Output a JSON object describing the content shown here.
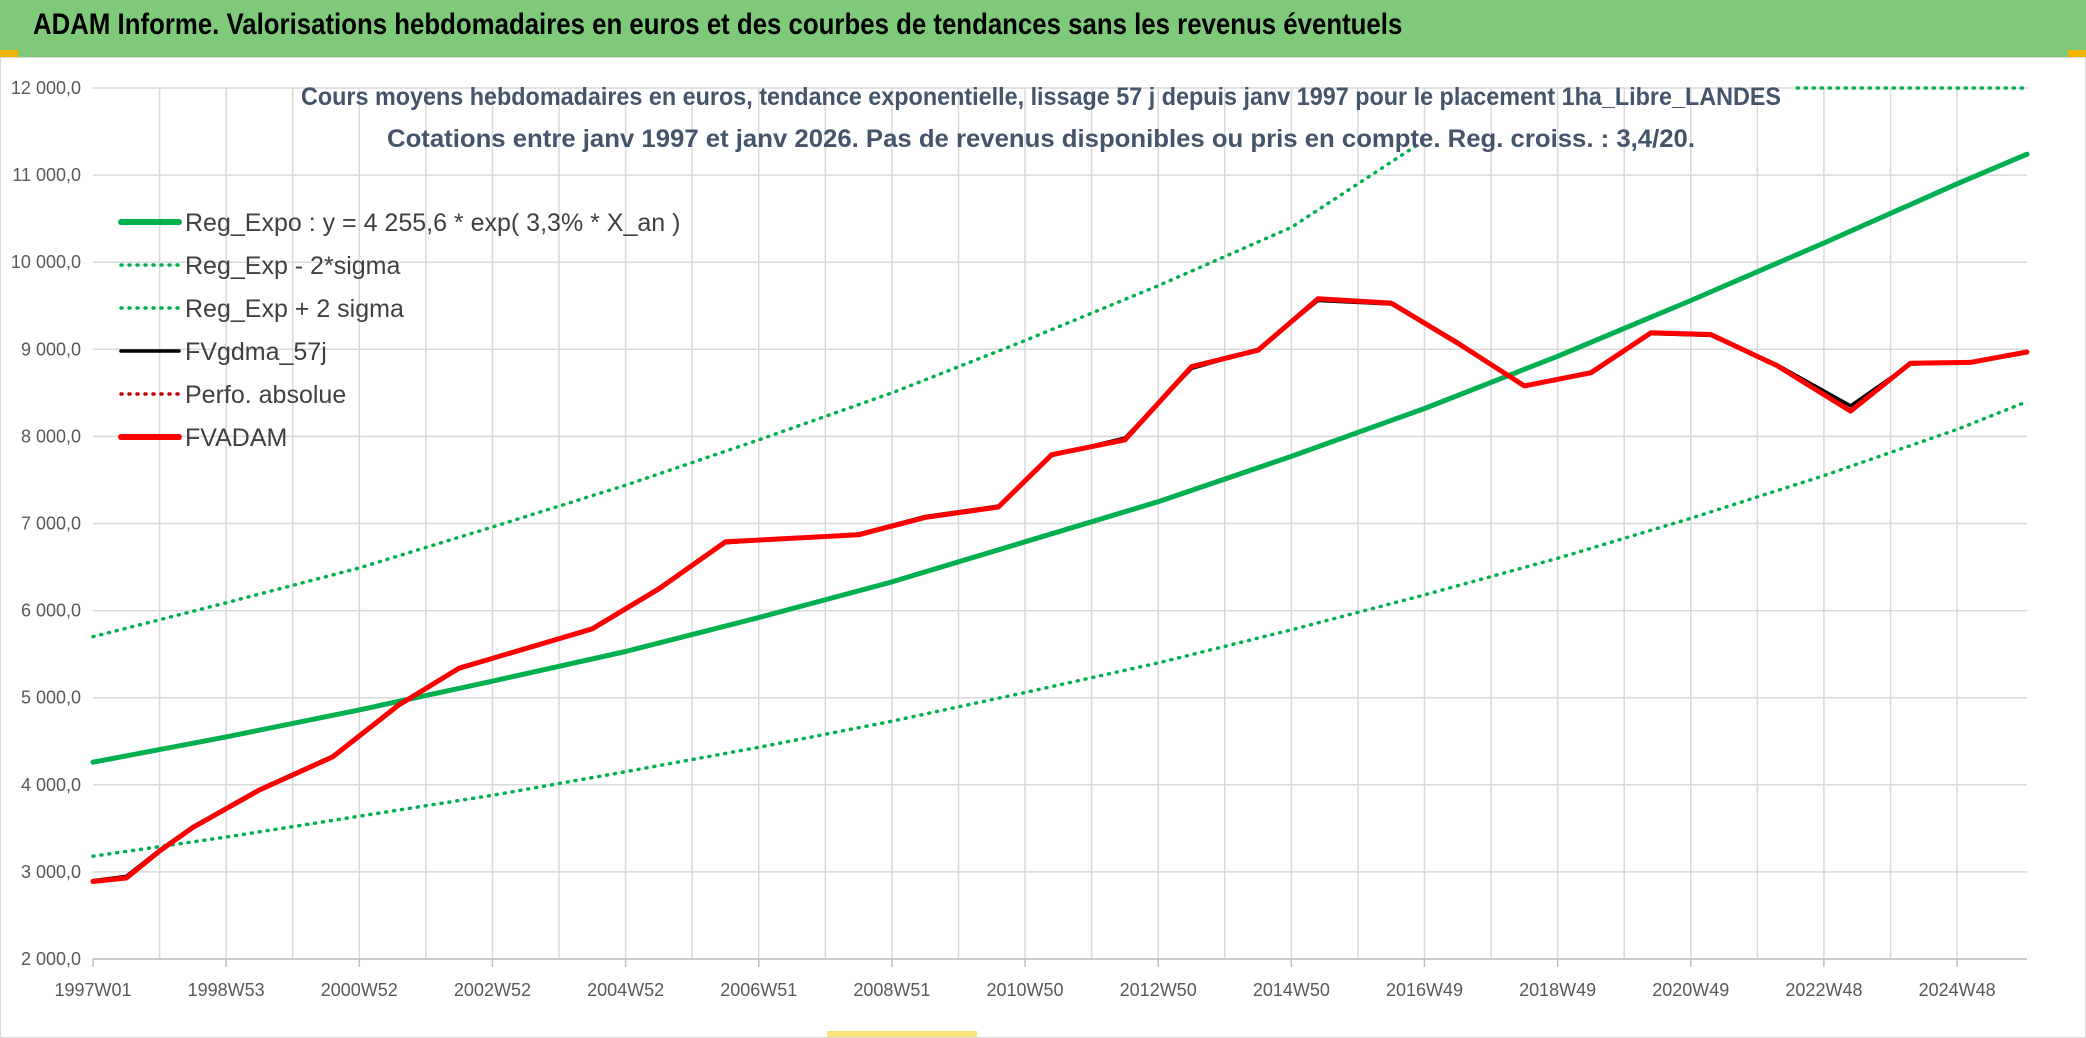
{
  "header": {
    "title": "ADAM Informe. Valorisations hebdomadaires en euros et des courbes de tendances sans les revenus éventuels"
  },
  "colors": {
    "header_bg": "#7fca7a",
    "trend_green": "#00b050",
    "band_green": "#00b050",
    "fvadam_red": "#ff0000",
    "fvgdma_black": "#000000",
    "perfo_red": "#c00000",
    "grid": "#d9d9d9"
  },
  "chart_data": {
    "type": "line",
    "title_line1": "Cours moyens hebdomadaires en euros, tendance exponentielle, lissage 57 j depuis janv 1997 pour le placement 1ha_Libre_LANDES",
    "title_line2": "Cotations entre janv 1997 et janv 2026. Pas de revenus disponibles ou pris en compte. Reg. croiss. : 3,4/20.",
    "ylim": [
      2000,
      12000
    ],
    "xlim_years": [
      1997.0,
      2026.05
    ],
    "y_ticks": [
      {
        "value": 2000,
        "label": "2 000,0"
      },
      {
        "value": 3000,
        "label": "3 000,0"
      },
      {
        "value": 4000,
        "label": "4 000,0"
      },
      {
        "value": 5000,
        "label": "5 000,0"
      },
      {
        "value": 6000,
        "label": "6 000,0"
      },
      {
        "value": 7000,
        "label": "7 000,0"
      },
      {
        "value": 8000,
        "label": "8 000,0"
      },
      {
        "value": 9000,
        "label": "9 000,0"
      },
      {
        "value": 10000,
        "label": "10 000,0"
      },
      {
        "value": 11000,
        "label": "11 000,0"
      },
      {
        "value": 12000,
        "label": "12 000,0"
      }
    ],
    "x_ticks": [
      {
        "year": 1997.0,
        "label": "1997W01"
      },
      {
        "year": 1999.0,
        "label": "1998W53"
      },
      {
        "year": 2001.0,
        "label": "2000W52"
      },
      {
        "year": 2003.0,
        "label": "2002W52"
      },
      {
        "year": 2005.0,
        "label": "2004W52"
      },
      {
        "year": 2007.0,
        "label": "2006W51"
      },
      {
        "year": 2009.0,
        "label": "2008W51"
      },
      {
        "year": 2011.0,
        "label": "2010W50"
      },
      {
        "year": 2013.0,
        "label": "2012W50"
      },
      {
        "year": 2015.0,
        "label": "2014W50"
      },
      {
        "year": 2017.0,
        "label": "2016W49"
      },
      {
        "year": 2019.0,
        "label": "2018W49"
      },
      {
        "year": 2021.0,
        "label": "2020W49"
      },
      {
        "year": 2023.0,
        "label": "2022W48"
      },
      {
        "year": 2025.0,
        "label": "2024W48"
      }
    ],
    "grid": true,
    "legend_position": "top-left",
    "series": [
      {
        "name": "Reg_Expo : y = 4 255,6 * exp( 3,3% *  X_an )",
        "style": "solid-thick",
        "color": "#00b050",
        "points": [
          [
            1997.0,
            4260
          ],
          [
            1999.0,
            4550
          ],
          [
            2001.0,
            4860
          ],
          [
            2003.0,
            5190
          ],
          [
            2005.0,
            5530
          ],
          [
            2007.0,
            5920
          ],
          [
            2009.0,
            6330
          ],
          [
            2011.0,
            6790
          ],
          [
            2013.0,
            7250
          ],
          [
            2015.0,
            7770
          ],
          [
            2017.0,
            8320
          ],
          [
            2019.0,
            8920
          ],
          [
            2021.0,
            9560
          ],
          [
            2023.0,
            10220
          ],
          [
            2025.0,
            10900
          ],
          [
            2026.05,
            11240
          ]
        ]
      },
      {
        "name": "Reg_Exp - 2*sigma",
        "style": "dotted",
        "color": "#00b050",
        "points": [
          [
            1997.0,
            3180
          ],
          [
            1999.0,
            3400
          ],
          [
            2001.0,
            3640
          ],
          [
            2003.0,
            3880
          ],
          [
            2005.0,
            4150
          ],
          [
            2007.0,
            4430
          ],
          [
            2009.0,
            4730
          ],
          [
            2011.0,
            5060
          ],
          [
            2013.0,
            5400
          ],
          [
            2015.0,
            5780
          ],
          [
            2017.0,
            6180
          ],
          [
            2019.0,
            6600
          ],
          [
            2021.0,
            7060
          ],
          [
            2023.0,
            7550
          ],
          [
            2025.0,
            8080
          ],
          [
            2026.05,
            8400
          ]
        ]
      },
      {
        "name": "Reg_Exp + 2 sigma",
        "style": "dotted",
        "color": "#00b050",
        "points": [
          [
            1997.0,
            5700
          ],
          [
            1999.0,
            6090
          ],
          [
            2001.0,
            6490
          ],
          [
            2003.0,
            6960
          ],
          [
            2005.0,
            7440
          ],
          [
            2007.0,
            7960
          ],
          [
            2009.0,
            8500
          ],
          [
            2011.0,
            9100
          ],
          [
            2013.0,
            9730
          ],
          [
            2015.0,
            10400
          ],
          [
            2016.9,
            11350
          ]
        ],
        "legend_tail_points": [
          [
            2022.6,
            12000
          ],
          [
            2026.05,
            12000
          ]
        ]
      },
      {
        "name": "FVgdma_57j",
        "style": "solid",
        "color": "#000000",
        "points": [
          [
            1997.0,
            2900
          ],
          [
            1997.5,
            2950
          ],
          [
            1998.0,
            3250
          ],
          [
            1998.5,
            3520
          ],
          [
            1999.5,
            3950
          ],
          [
            2000.6,
            4330
          ],
          [
            2001.6,
            4930
          ],
          [
            2002.5,
            5330
          ],
          [
            2004.5,
            5800
          ],
          [
            2005.5,
            6260
          ],
          [
            2006.5,
            6780
          ],
          [
            2008.5,
            6880
          ],
          [
            2009.5,
            7080
          ],
          [
            2010.6,
            7200
          ],
          [
            2011.4,
            7780
          ],
          [
            2012.5,
            7980
          ],
          [
            2013.5,
            8780
          ],
          [
            2014.5,
            9000
          ],
          [
            2015.4,
            9560
          ],
          [
            2016.5,
            9520
          ],
          [
            2017.5,
            9080
          ],
          [
            2018.5,
            8580
          ],
          [
            2019.5,
            8740
          ],
          [
            2020.4,
            9180
          ],
          [
            2021.3,
            9160
          ],
          [
            2022.3,
            8820
          ],
          [
            2023.4,
            8350
          ],
          [
            2024.3,
            8830
          ],
          [
            2025.2,
            8850
          ],
          [
            2026.05,
            8960
          ]
        ]
      },
      {
        "name": "Perfo. absolue",
        "style": "dotted",
        "color": "#c00000",
        "points": []
      },
      {
        "name": "FVADAM",
        "style": "solid-thick",
        "color": "#ff0000",
        "points": [
          [
            1997.0,
            2890
          ],
          [
            1997.5,
            2930
          ],
          [
            1998.0,
            3240
          ],
          [
            1998.5,
            3510
          ],
          [
            1999.5,
            3940
          ],
          [
            2000.6,
            4320
          ],
          [
            2001.6,
            4920
          ],
          [
            2002.5,
            5340
          ],
          [
            2004.5,
            5790
          ],
          [
            2005.5,
            6250
          ],
          [
            2006.5,
            6790
          ],
          [
            2008.5,
            6870
          ],
          [
            2009.5,
            7070
          ],
          [
            2010.6,
            7190
          ],
          [
            2011.4,
            7790
          ],
          [
            2012.5,
            7960
          ],
          [
            2013.5,
            8800
          ],
          [
            2014.5,
            8990
          ],
          [
            2015.4,
            9580
          ],
          [
            2016.5,
            9530
          ],
          [
            2017.5,
            9070
          ],
          [
            2018.5,
            8580
          ],
          [
            2019.5,
            8730
          ],
          [
            2020.4,
            9190
          ],
          [
            2021.3,
            9170
          ],
          [
            2022.3,
            8810
          ],
          [
            2023.4,
            8290
          ],
          [
            2024.3,
            8840
          ],
          [
            2025.2,
            8850
          ],
          [
            2026.05,
            8970
          ]
        ]
      }
    ]
  }
}
